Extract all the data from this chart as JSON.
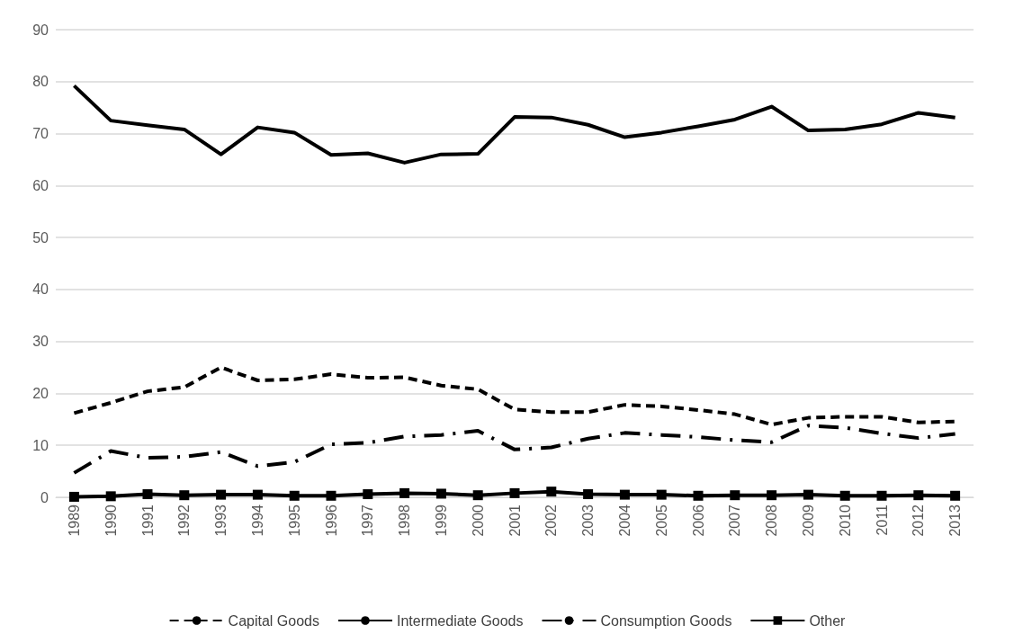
{
  "chart_data": {
    "type": "line",
    "categories": [
      "1989",
      "1990",
      "1991",
      "1992",
      "1993",
      "1994",
      "1995",
      "1996",
      "1997",
      "1998",
      "1999",
      "2000",
      "2001",
      "2002",
      "2003",
      "2004",
      "2005",
      "2006",
      "2007",
      "2008",
      "2009",
      "2010",
      "2011",
      "2012",
      "2013"
    ],
    "series": [
      {
        "name": "Capital Goods",
        "color": "#000000",
        "line_style": "dashed",
        "marker": "none",
        "values": [
          16.2,
          18.2,
          20.4,
          21.2,
          25,
          22.5,
          22.7,
          23.7,
          23,
          23.1,
          21.5,
          20.8,
          16.9,
          16.4,
          16.4,
          17.8,
          17.5,
          16.8,
          16,
          14,
          15.3,
          15.5,
          15.5,
          14.4,
          14.6
        ]
      },
      {
        "name": "Intermediate Goods",
        "color": "#000000",
        "line_style": "solid",
        "marker": "none",
        "values": [
          79.2,
          72.5,
          71.6,
          70.8,
          66,
          71.2,
          70.2,
          65.9,
          66.2,
          64.4,
          66,
          66.1,
          73.2,
          73.1,
          71.7,
          69.3,
          70.2,
          71.4,
          72.7,
          75.2,
          70.6,
          70.8,
          71.8,
          74,
          73.1
        ]
      },
      {
        "name": "Consumption Goods",
        "color": "#000000",
        "line_style": "dashdot",
        "marker": "none",
        "values": [
          4.7,
          8.9,
          7.6,
          7.8,
          8.7,
          6,
          6.8,
          10.2,
          10.5,
          11.7,
          12,
          12.8,
          9.2,
          9.6,
          11.3,
          12.4,
          12,
          11.6,
          11,
          10.6,
          13.8,
          13.4,
          12.3,
          11.4,
          12.2
        ]
      },
      {
        "name": "Other",
        "color": "#000000",
        "line_style": "solid",
        "marker": "square",
        "values": [
          0.1,
          0.2,
          0.6,
          0.4,
          0.5,
          0.5,
          0.3,
          0.3,
          0.6,
          0.8,
          0.7,
          0.4,
          0.8,
          1.1,
          0.6,
          0.5,
          0.5,
          0.3,
          0.4,
          0.4,
          0.5,
          0.3,
          0.3,
          0.4,
          0.3
        ]
      }
    ],
    "ylim": [
      0,
      90
    ],
    "yticks": [
      0,
      10,
      20,
      30,
      40,
      50,
      60,
      70,
      80,
      90
    ],
    "grid": "y",
    "legend": "bottom"
  }
}
